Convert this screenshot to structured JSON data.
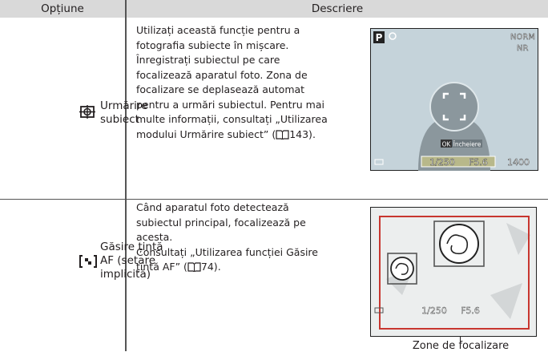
{
  "table": {
    "header": [
      "Opțiune",
      "Descriere"
    ],
    "rows": [
      {
        "option": [
          "Urmărire",
          "subiect"
        ],
        "description": [
          "Utilizați această funcție pentru a",
          "fotografia subiecte în mișcare.",
          "Înregistrați subiectul pe care",
          "focalizează aparatul foto. Zona de",
          "focalizare se deplasează automat",
          "pentru a urmări subiectul. Pentru mai",
          "multe informații, consultați „Utilizarea"
        ],
        "ref_text": "modului Urmărire subiect” (",
        "ref_page": "143).",
        "screen": {
          "mode": "P",
          "quality": "NORM",
          "nr": "NR",
          "ok": "OK",
          "ok_label": "Încheiere",
          "shutter": "1/250",
          "aperture": "F5.6",
          "shots": "1400"
        }
      },
      {
        "option": [
          "Găsire țintă",
          "AF (setare",
          "implicită)"
        ],
        "description": [
          "Când aparatul foto detectează",
          "subiectul principal, focalizează pe",
          "acesta.",
          "Consultați „Utilizarea funcției Găsire"
        ],
        "ref_text": "țintă AF” (",
        "ref_page": "74).",
        "screen": {
          "shutter": "1/250",
          "aperture": "F5.6"
        },
        "caption": "Zone de focalizare"
      }
    ]
  }
}
